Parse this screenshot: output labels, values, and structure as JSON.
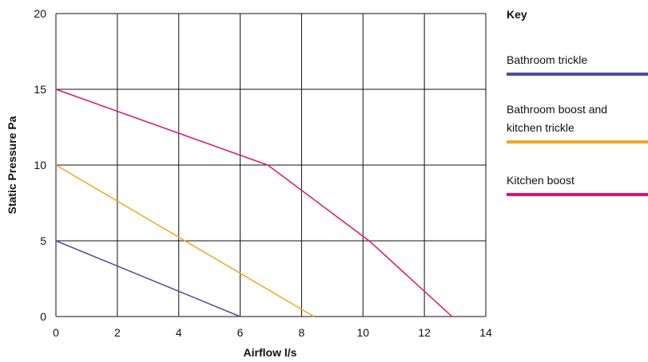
{
  "chart_data": {
    "type": "line",
    "xlabel": "Airflow l/s",
    "ylabel": "Static Pressure Pa",
    "xlim": [
      0,
      14
    ],
    "ylim": [
      0,
      20
    ],
    "x_ticks": [
      0,
      2,
      4,
      6,
      8,
      10,
      12,
      14
    ],
    "y_ticks": [
      0,
      5,
      10,
      15,
      20
    ],
    "grid": true,
    "legend_title": "Key",
    "legend_position": "right",
    "series": [
      {
        "name": "Bathroom trickle",
        "color": "#4a4f9e",
        "points": [
          [
            0,
            5
          ],
          [
            6,
            0
          ]
        ]
      },
      {
        "name": "Bathroom boost and kitchen trickle",
        "color": "#f2a81d",
        "points": [
          [
            0,
            10
          ],
          [
            8.4,
            0
          ]
        ]
      },
      {
        "name": "Kitchen boost",
        "color": "#e0146c",
        "points": [
          [
            0,
            15
          ],
          [
            6.9,
            10
          ],
          [
            10.2,
            5
          ],
          [
            12.9,
            0
          ]
        ]
      }
    ]
  }
}
